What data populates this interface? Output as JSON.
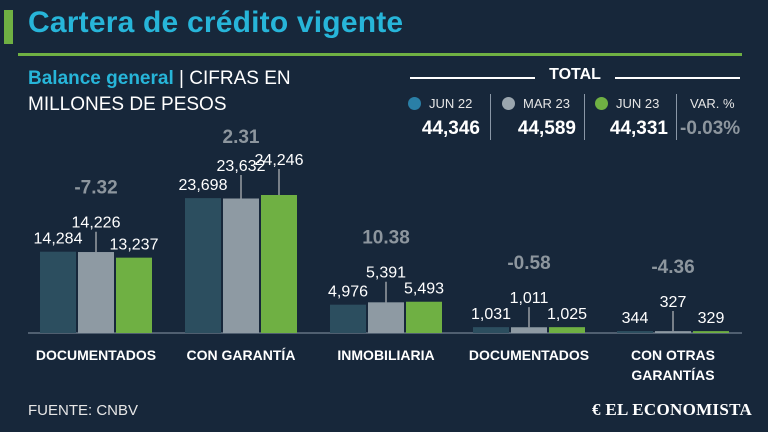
{
  "header": {
    "title": "Cartera de crédito vigente",
    "subtitle_bold": "Balance general",
    "subtitle_rest": " | CIFRAS EN",
    "subtitle_line2": "MILLONES DE PESOS"
  },
  "total": {
    "label": "TOTAL",
    "items": [
      {
        "period": "JUN 22",
        "value": "44,346",
        "color": "#2a7fa6"
      },
      {
        "period": "MAR 23",
        "value": "44,589",
        "color": "#9ba6ae"
      },
      {
        "period": "JUN 23",
        "value": "44,331",
        "color": "#6fb043"
      }
    ],
    "var_label": "VAR. %",
    "var_value": "-0.03%"
  },
  "chart_data": {
    "type": "bar",
    "categories": [
      "DOCUMENTADOS",
      "CON GARANTÍA",
      "INMOBILIARIA",
      "DOCUMENTADOS",
      "CON OTRAS GARANTÍAS"
    ],
    "category_lines": [
      [
        "DOCUMENTADOS"
      ],
      [
        "CON GARANTÍA"
      ],
      [
        "INMOBILIARIA"
      ],
      [
        "DOCUMENTADOS"
      ],
      [
        "CON OTRAS",
        "GARANTÍAS"
      ]
    ],
    "series": [
      {
        "name": "JUN 22",
        "values": [
          14284,
          23698,
          4976,
          1031,
          344
        ],
        "labels": [
          "14,284",
          "23,698",
          "4,976",
          "1,031",
          "344"
        ],
        "color": "#2c4e5f"
      },
      {
        "name": "MAR 23",
        "values": [
          14226,
          23632,
          5391,
          1011,
          327
        ],
        "labels": [
          "14,226",
          "23,632",
          "5,391",
          "1,011",
          "327"
        ],
        "color": "#8e9aa3"
      },
      {
        "name": "JUN 23",
        "values": [
          13237,
          24246,
          5493,
          1025,
          329
        ],
        "labels": [
          "13,237",
          "24,246",
          "5,493",
          "1,025",
          "329"
        ],
        "color": "#6fb043"
      }
    ],
    "variations": [
      "-7.32",
      "2.31",
      "10.38",
      "-0.58",
      "-4.36"
    ],
    "ylim": [
      0,
      24246
    ],
    "grid": false
  },
  "footer": {
    "source": "FUENTE: CNBV",
    "brand": "EL ECONOMISTA"
  }
}
